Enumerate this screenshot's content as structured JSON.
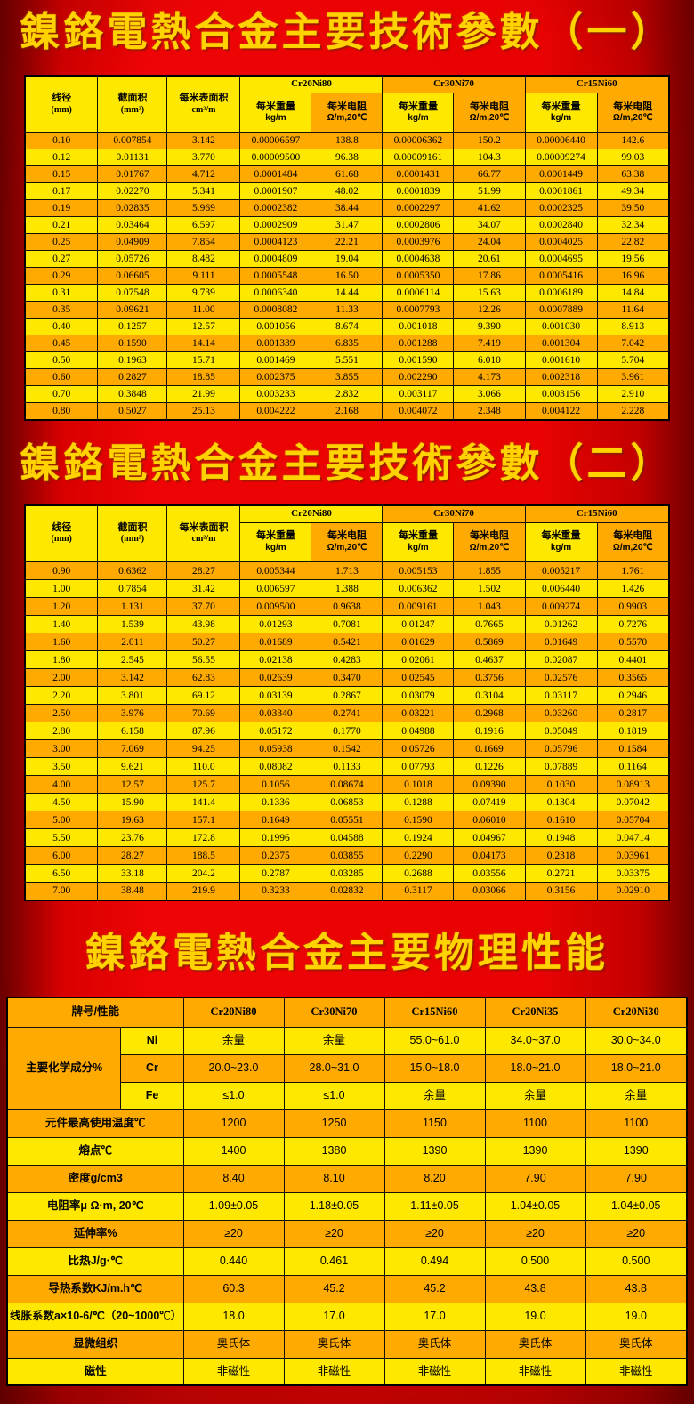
{
  "titles": {
    "tech1": "鎳鉻電熱合金主要技術參數（一）",
    "tech2": "鎳鉻電熱合金主要技術參數（二）",
    "physical": "鎳鉻電熱合金主要物理性能"
  },
  "colors": {
    "background_red": "#e00000",
    "cell_yellow": "#ffe800",
    "cell_orange": "#ffaa00",
    "title_gold": "#ffd200"
  },
  "tech_header": {
    "diameter": "线径",
    "diameter_unit": "(mm)",
    "section_area": "截面积",
    "section_area_unit": "(mm²)",
    "surface_area": "每米表面积",
    "surface_area_unit": "cm²/m",
    "alloy1": "Cr20Ni80",
    "alloy2": "Cr30Ni70",
    "alloy3": "Cr15Ni60",
    "weight": "每米重量",
    "weight_unit": "kg/m",
    "resistance": "每米电阻",
    "resistance_unit": "Ω/m,20℃"
  },
  "table1_rows": [
    [
      "0.10",
      "0.007854",
      "3.142",
      "0.00006597",
      "138.8",
      "0.00006362",
      "150.2",
      "0.00006440",
      "142.6"
    ],
    [
      "0.12",
      "0.01131",
      "3.770",
      "0.00009500",
      "96.38",
      "0.00009161",
      "104.3",
      "0.00009274",
      "99.03"
    ],
    [
      "0.15",
      "0.01767",
      "4.712",
      "0.0001484",
      "61.68",
      "0.0001431",
      "66.77",
      "0.0001449",
      "63.38"
    ],
    [
      "0.17",
      "0.02270",
      "5.341",
      "0.0001907",
      "48.02",
      "0.0001839",
      "51.99",
      "0.0001861",
      "49.34"
    ],
    [
      "0.19",
      "0.02835",
      "5.969",
      "0.0002382",
      "38.44",
      "0.0002297",
      "41.62",
      "0.0002325",
      "39.50"
    ],
    [
      "0.21",
      "0.03464",
      "6.597",
      "0.0002909",
      "31.47",
      "0.0002806",
      "34.07",
      "0.0002840",
      "32.34"
    ],
    [
      "0.25",
      "0.04909",
      "7.854",
      "0.0004123",
      "22.21",
      "0.0003976",
      "24.04",
      "0.0004025",
      "22.82"
    ],
    [
      "0.27",
      "0.05726",
      "8.482",
      "0.0004809",
      "19.04",
      "0.0004638",
      "20.61",
      "0.0004695",
      "19.56"
    ],
    [
      "0.29",
      "0.06605",
      "9.111",
      "0.0005548",
      "16.50",
      "0.0005350",
      "17.86",
      "0.0005416",
      "16.96"
    ],
    [
      "0.31",
      "0.07548",
      "9.739",
      "0.0006340",
      "14.44",
      "0.0006114",
      "15.63",
      "0.0006189",
      "14.84"
    ],
    [
      "0.35",
      "0.09621",
      "11.00",
      "0.0008082",
      "11.33",
      "0.0007793",
      "12.26",
      "0.0007889",
      "11.64"
    ],
    [
      "0.40",
      "0.1257",
      "12.57",
      "0.001056",
      "8.674",
      "0.001018",
      "9.390",
      "0.001030",
      "8.913"
    ],
    [
      "0.45",
      "0.1590",
      "14.14",
      "0.001339",
      "6.835",
      "0.001288",
      "7.419",
      "0.001304",
      "7.042"
    ],
    [
      "0.50",
      "0.1963",
      "15.71",
      "0.001469",
      "5.551",
      "0.001590",
      "6.010",
      "0.001610",
      "5.704"
    ],
    [
      "0.60",
      "0.2827",
      "18.85",
      "0.002375",
      "3.855",
      "0.002290",
      "4.173",
      "0.002318",
      "3.961"
    ],
    [
      "0.70",
      "0.3848",
      "21.99",
      "0.003233",
      "2.832",
      "0.003117",
      "3.066",
      "0.003156",
      "2.910"
    ],
    [
      "0.80",
      "0.5027",
      "25.13",
      "0.004222",
      "2.168",
      "0.004072",
      "2.348",
      "0.004122",
      "2.228"
    ]
  ],
  "table2_rows": [
    [
      "0.90",
      "0.6362",
      "28.27",
      "0.005344",
      "1.713",
      "0.005153",
      "1.855",
      "0.005217",
      "1.761"
    ],
    [
      "1.00",
      "0.7854",
      "31.42",
      "0.006597",
      "1.388",
      "0.006362",
      "1.502",
      "0.006440",
      "1.426"
    ],
    [
      "1.20",
      "1.131",
      "37.70",
      "0.009500",
      "0.9638",
      "0.009161",
      "1.043",
      "0.009274",
      "0.9903"
    ],
    [
      "1.40",
      "1.539",
      "43.98",
      "0.01293",
      "0.7081",
      "0.01247",
      "0.7665",
      "0.01262",
      "0.7276"
    ],
    [
      "1.60",
      "2.011",
      "50.27",
      "0.01689",
      "0.5421",
      "0.01629",
      "0.5869",
      "0.01649",
      "0.5570"
    ],
    [
      "1.80",
      "2.545",
      "56.55",
      "0.02138",
      "0.4283",
      "0.02061",
      "0.4637",
      "0.02087",
      "0.4401"
    ],
    [
      "2.00",
      "3.142",
      "62.83",
      "0.02639",
      "0.3470",
      "0.02545",
      "0.3756",
      "0.02576",
      "0.3565"
    ],
    [
      "2.20",
      "3.801",
      "69.12",
      "0.03139",
      "0.2867",
      "0.03079",
      "0.3104",
      "0.03117",
      "0.2946"
    ],
    [
      "2.50",
      "3.976",
      "70.69",
      "0.03340",
      "0.2741",
      "0.03221",
      "0.2968",
      "0.03260",
      "0.2817"
    ],
    [
      "2.80",
      "6.158",
      "87.96",
      "0.05172",
      "0.1770",
      "0.04988",
      "0.1916",
      "0.05049",
      "0.1819"
    ],
    [
      "3.00",
      "7.069",
      "94.25",
      "0.05938",
      "0.1542",
      "0.05726",
      "0.1669",
      "0.05796",
      "0.1584"
    ],
    [
      "3.50",
      "9.621",
      "110.0",
      "0.08082",
      "0.1133",
      "0.07793",
      "0.1226",
      "0.07889",
      "0.1164"
    ],
    [
      "4.00",
      "12.57",
      "125.7",
      "0.1056",
      "0.08674",
      "0.1018",
      "0.09390",
      "0.1030",
      "0.08913"
    ],
    [
      "4.50",
      "15.90",
      "141.4",
      "0.1336",
      "0.06853",
      "0.1288",
      "0.07419",
      "0.1304",
      "0.07042"
    ],
    [
      "5.00",
      "19.63",
      "157.1",
      "0.1649",
      "0.05551",
      "0.1590",
      "0.06010",
      "0.1610",
      "0.05704"
    ],
    [
      "5.50",
      "23.76",
      "172.8",
      "0.1996",
      "0.04588",
      "0.1924",
      "0.04967",
      "0.1948",
      "0.04714"
    ],
    [
      "6.00",
      "28.27",
      "188.5",
      "0.2375",
      "0.03855",
      "0.2290",
      "0.04173",
      "0.2318",
      "0.03961"
    ],
    [
      "6.50",
      "33.18",
      "204.2",
      "0.2787",
      "0.03285",
      "0.2688",
      "0.03556",
      "0.2721",
      "0.03375"
    ],
    [
      "7.00",
      "38.48",
      "219.9",
      "0.3233",
      "0.02832",
      "0.3117",
      "0.03066",
      "0.3156",
      "0.02910"
    ]
  ],
  "physical": {
    "header_label": "牌号/性能",
    "alloys": [
      "Cr20Ni80",
      "Cr30Ni70",
      "Cr15Ni60",
      "Cr20Ni35",
      "Cr20Ni30"
    ],
    "chem_group_label": "主要化学成分%",
    "chem_rows": [
      {
        "el": "Ni",
        "values": [
          "余量",
          "余量",
          "55.0~61.0",
          "34.0~37.0",
          "30.0~34.0"
        ]
      },
      {
        "el": "Cr",
        "values": [
          "20.0~23.0",
          "28.0~31.0",
          "15.0~18.0",
          "18.0~21.0",
          "18.0~21.0"
        ]
      },
      {
        "el": "Fe",
        "values": [
          "≤1.0",
          "≤1.0",
          "余量",
          "余量",
          "余量"
        ]
      }
    ],
    "prop_rows": [
      {
        "label": "元件最高使用温度℃",
        "values": [
          "1200",
          "1250",
          "1150",
          "1100",
          "1100"
        ]
      },
      {
        "label": "熔点℃",
        "values": [
          "1400",
          "1380",
          "1390",
          "1390",
          "1390"
        ]
      },
      {
        "label": "密度g/cm3",
        "values": [
          "8.40",
          "8.10",
          "8.20",
          "7.90",
          "7.90"
        ]
      },
      {
        "label": "电阻率μ Ω·m, 20℃",
        "values": [
          "1.09±0.05",
          "1.18±0.05",
          "1.11±0.05",
          "1.04±0.05",
          "1.04±0.05"
        ]
      },
      {
        "label": "延伸率%",
        "values": [
          "≥20",
          "≥20",
          "≥20",
          "≥20",
          "≥20"
        ]
      },
      {
        "label": "比热J/g·℃",
        "values": [
          "0.440",
          "0.461",
          "0.494",
          "0.500",
          "0.500"
        ]
      },
      {
        "label": "导热系数KJ/m.h℃",
        "values": [
          "60.3",
          "45.2",
          "45.2",
          "43.8",
          "43.8"
        ]
      },
      {
        "label": "线胀系数a×10-6/℃（20~1000℃）",
        "values": [
          "18.0",
          "17.0",
          "17.0",
          "19.0",
          "19.0"
        ]
      },
      {
        "label": "显微组织",
        "values": [
          "奥氏体",
          "奥氏体",
          "奥氏体",
          "奥氏体",
          "奥氏体"
        ]
      },
      {
        "label": "磁性",
        "values": [
          "非磁性",
          "非磁性",
          "非磁性",
          "非磁性",
          "非磁性"
        ]
      }
    ]
  }
}
